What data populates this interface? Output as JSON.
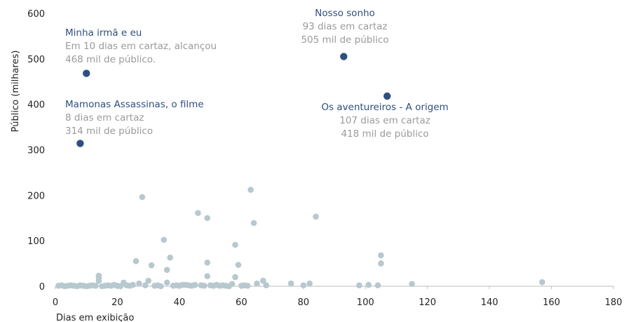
{
  "chart_data": {
    "type": "scatter",
    "title": "",
    "xlabel": "Dias em exibição",
    "ylabel": "Público (milhares)",
    "xlim": [
      0,
      180
    ],
    "ylim": [
      0,
      600
    ],
    "xticks": [
      0,
      20,
      40,
      60,
      80,
      100,
      120,
      140,
      160,
      180
    ],
    "yticks": [
      0,
      100,
      200,
      300,
      400,
      500,
      600
    ],
    "grid": false,
    "colors": {
      "highlight": "#2e4f7f",
      "background_points": "#b7c8cf",
      "annotation_title": "#2e4f7f",
      "annotation_text": "#9a9a9a"
    },
    "highlighted_points": [
      {
        "x": 10,
        "y": 468,
        "label": "Minha irmã e eu",
        "lines": [
          "Em 10 dias em cartaz, alcançou",
          "468 mil de público."
        ]
      },
      {
        "x": 93,
        "y": 505,
        "label": "Nosso sonho",
        "lines": [
          "93 dias em cartaz",
          "505 mil de público"
        ]
      },
      {
        "x": 107,
        "y": 418,
        "label": "Os aventureiros - A origem",
        "lines": [
          "107 dias em cartaz",
          "418 mil de público"
        ]
      },
      {
        "x": 8,
        "y": 314,
        "label": "Mamonas Assassinas, o filme",
        "lines": [
          "8 dias em cartaz",
          "314 mil de público"
        ]
      }
    ],
    "points": [
      [
        28,
        196
      ],
      [
        63,
        212
      ],
      [
        46,
        161
      ],
      [
        49,
        150
      ],
      [
        64,
        139
      ],
      [
        84,
        153
      ],
      [
        35,
        102
      ],
      [
        58,
        91
      ],
      [
        37,
        63
      ],
      [
        105,
        68
      ],
      [
        26,
        55
      ],
      [
        49,
        52
      ],
      [
        59,
        47
      ],
      [
        105,
        50
      ],
      [
        31,
        46
      ],
      [
        36,
        36
      ],
      [
        14,
        23
      ],
      [
        14,
        19
      ],
      [
        49,
        22
      ],
      [
        58,
        20
      ],
      [
        157,
        9
      ],
      [
        14,
        12
      ],
      [
        30,
        12
      ],
      [
        67,
        12
      ],
      [
        22,
        8
      ],
      [
        27,
        6
      ],
      [
        36,
        8
      ],
      [
        41,
        3
      ],
      [
        45,
        3
      ],
      [
        57,
        5
      ],
      [
        65,
        6
      ],
      [
        76,
        6
      ],
      [
        82,
        6
      ],
      [
        98,
        2
      ],
      [
        101,
        3
      ],
      [
        104,
        2
      ],
      [
        115,
        5
      ],
      [
        1,
        1
      ],
      [
        2,
        2
      ],
      [
        3,
        0
      ],
      [
        4,
        1
      ],
      [
        5,
        2
      ],
      [
        6,
        1
      ],
      [
        7,
        0
      ],
      [
        8,
        2
      ],
      [
        9,
        1
      ],
      [
        10,
        0
      ],
      [
        11,
        1
      ],
      [
        12,
        2
      ],
      [
        13,
        1
      ],
      [
        15,
        0
      ],
      [
        16,
        1
      ],
      [
        17,
        2
      ],
      [
        18,
        1
      ],
      [
        19,
        3
      ],
      [
        20,
        1
      ],
      [
        21,
        0
      ],
      [
        23,
        2
      ],
      [
        24,
        1
      ],
      [
        25,
        3
      ],
      [
        29,
        2
      ],
      [
        32,
        1
      ],
      [
        33,
        2
      ],
      [
        34,
        0
      ],
      [
        38,
        1
      ],
      [
        39,
        2
      ],
      [
        40,
        1
      ],
      [
        42,
        3
      ],
      [
        43,
        2
      ],
      [
        44,
        1
      ],
      [
        47,
        2
      ],
      [
        48,
        1
      ],
      [
        50,
        2
      ],
      [
        51,
        1
      ],
      [
        52,
        3
      ],
      [
        53,
        1
      ],
      [
        54,
        2
      ],
      [
        55,
        1
      ],
      [
        56,
        0
      ],
      [
        60,
        1
      ],
      [
        61,
        2
      ],
      [
        62,
        1
      ],
      [
        68,
        2
      ],
      [
        80,
        2
      ]
    ]
  }
}
